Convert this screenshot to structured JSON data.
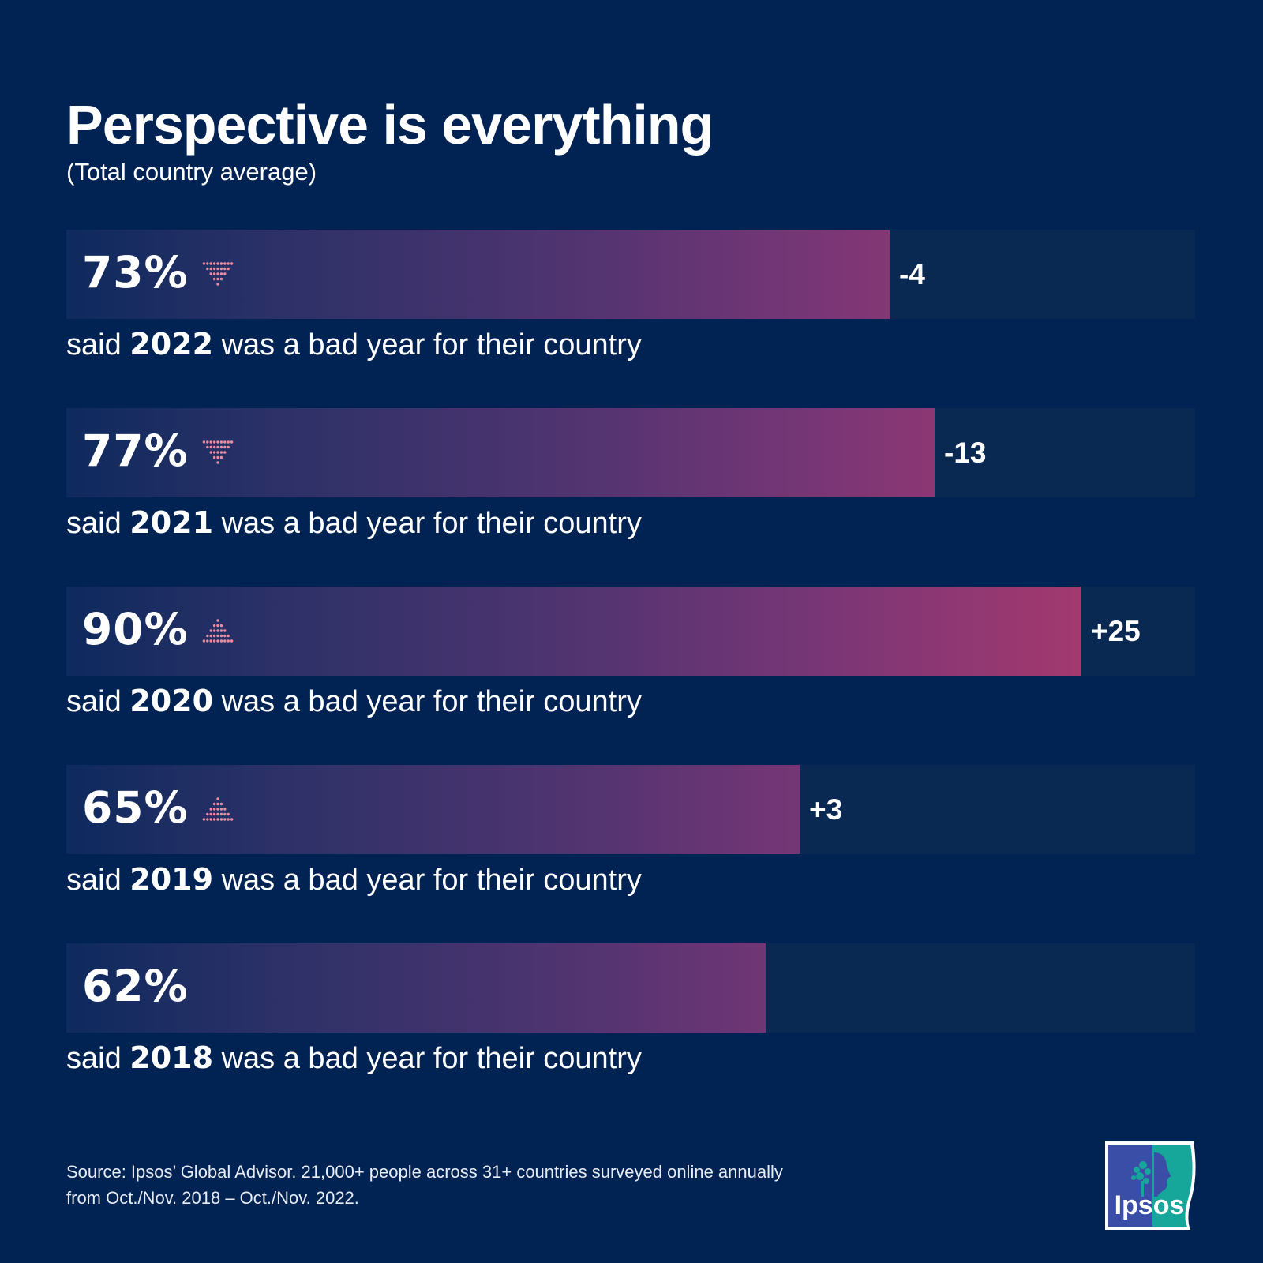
{
  "header": {
    "title": "Perspective is everything",
    "subtitle": "(Total country average)"
  },
  "colors": {
    "background": "#012354",
    "track": "#092852",
    "bar_start": "#0e2a5e",
    "bar_end": "#a3396f",
    "arrow": "#f08a9c",
    "logo_blue": "#3a4ea8",
    "logo_teal": "#17a69a"
  },
  "chart_data": {
    "type": "bar",
    "orientation": "horizontal",
    "title": "Perspective is everything",
    "subtitle": "(Total country average)",
    "xlim": [
      0,
      100
    ],
    "unit": "%",
    "categories": [
      "2022",
      "2021",
      "2020",
      "2019",
      "2018"
    ],
    "values": [
      73,
      77,
      90,
      65,
      62
    ],
    "value_labels": [
      "73%",
      "77%",
      "90%",
      "65%",
      "62%"
    ],
    "changes": [
      "-4",
      "-13",
      "+25",
      "+3",
      ""
    ],
    "change_direction": [
      "down",
      "down",
      "up",
      "up",
      "none"
    ],
    "caption_prefix": "said",
    "caption_suffix": "was a bad year for their country"
  },
  "source": {
    "line1": "Source: Ipsos’ Global Advisor. 21,000+ people across 31+ countries surveyed online annually",
    "line2": "from Oct./Nov. 2018 – Oct./Nov. 2022."
  },
  "logo": {
    "text": "Ipsos"
  }
}
